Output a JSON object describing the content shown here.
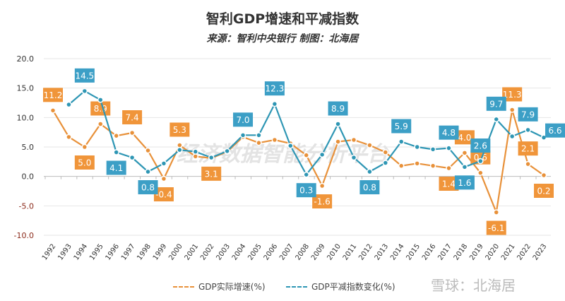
{
  "chart_data": {
    "type": "line",
    "title": "智利GDP增速和平减指数",
    "subtitle": "来源：智利中央银行 制图：北海居",
    "x": [
      "1992",
      "1993",
      "1994",
      "1995",
      "1996",
      "1997",
      "1998",
      "1999",
      "2000",
      "2001",
      "2002",
      "2003",
      "2004",
      "2005",
      "2006",
      "2007",
      "2008",
      "2009",
      "2010",
      "2011",
      "2012",
      "2013",
      "2014",
      "2015",
      "2016",
      "2017",
      "2018",
      "2019",
      "2020",
      "2021",
      "2022",
      "2023"
    ],
    "ylim": [
      -10,
      20
    ],
    "yticks": [
      "20.0",
      "15.0",
      "10.0",
      "5.0",
      "0.0",
      "-5.0",
      "-10.0"
    ],
    "grid": true,
    "legend_position": "bottom",
    "series": [
      {
        "name": "GDP实际增速(%)",
        "color": "#e8913a",
        "values": [
          11.2,
          6.7,
          5.0,
          8.9,
          6.9,
          7.4,
          4.4,
          -0.4,
          5.3,
          3.4,
          3.1,
          4.2,
          6.7,
          5.7,
          6.2,
          5.6,
          3.6,
          -1.6,
          5.9,
          6.2,
          5.3,
          4.1,
          1.8,
          2.2,
          1.8,
          1.4,
          4.0,
          0.6,
          -6.1,
          11.3,
          2.1,
          0.2
        ],
        "labels": [
          11.2,
          null,
          5.0,
          8.9,
          null,
          7.4,
          null,
          -0.4,
          5.3,
          null,
          3.1,
          null,
          null,
          null,
          null,
          null,
          null,
          -1.6,
          null,
          null,
          null,
          null,
          null,
          null,
          null,
          1.4,
          4.0,
          0.6,
          -6.1,
          11.3,
          2.1,
          0.2
        ]
      },
      {
        "name": "GDP平减指数变化(%)",
        "color": "#2e96b4",
        "values": [
          null,
          12.2,
          14.5,
          13.0,
          4.1,
          3.2,
          0.8,
          2.2,
          4.5,
          4.2,
          3.2,
          4.3,
          7.0,
          7.0,
          12.3,
          5.2,
          0.3,
          3.7,
          8.9,
          3.2,
          0.8,
          2.3,
          5.9,
          5.0,
          4.6,
          4.8,
          1.6,
          2.6,
          9.7,
          6.8,
          7.9,
          6.6
        ],
        "labels": [
          null,
          null,
          14.5,
          null,
          4.1,
          null,
          0.8,
          null,
          null,
          null,
          null,
          null,
          7.0,
          null,
          12.3,
          null,
          0.3,
          null,
          8.9,
          null,
          0.8,
          null,
          5.9,
          null,
          null,
          4.8,
          1.6,
          2.6,
          9.7,
          null,
          7.9,
          6.6
        ]
      }
    ]
  },
  "watermark": "经济数据智能分析平台",
  "brand": "雪球：北海居"
}
